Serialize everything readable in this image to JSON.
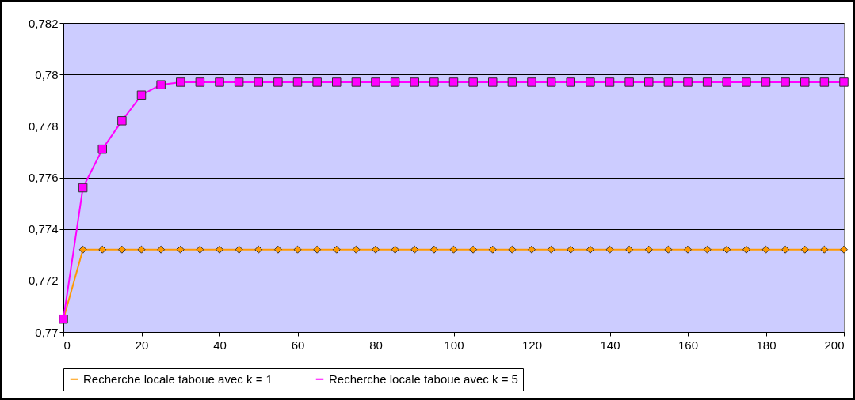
{
  "chart_data": {
    "type": "line",
    "x": [
      0,
      5,
      10,
      15,
      20,
      25,
      30,
      35,
      40,
      45,
      50,
      55,
      60,
      65,
      70,
      75,
      80,
      85,
      90,
      95,
      100,
      105,
      110,
      115,
      120,
      125,
      130,
      135,
      140,
      145,
      150,
      155,
      160,
      165,
      170,
      175,
      180,
      185,
      190,
      195,
      200
    ],
    "series": [
      {
        "name": "Recherche locale taboue avec k = 1",
        "color": "#ff9900",
        "marker": "diamond",
        "values": [
          0.7705,
          0.7732,
          0.7732,
          0.7732,
          0.7732,
          0.7732,
          0.7732,
          0.7732,
          0.7732,
          0.7732,
          0.7732,
          0.7732,
          0.7732,
          0.7732,
          0.7732,
          0.7732,
          0.7732,
          0.7732,
          0.7732,
          0.7732,
          0.7732,
          0.7732,
          0.7732,
          0.7732,
          0.7732,
          0.7732,
          0.7732,
          0.7732,
          0.7732,
          0.7732,
          0.7732,
          0.7732,
          0.7732,
          0.7732,
          0.7732,
          0.7732,
          0.7732,
          0.7732,
          0.7732,
          0.7732,
          0.7732
        ]
      },
      {
        "name": "Recherche locale taboue avec k = 5",
        "color": "#ff00ff",
        "marker": "square",
        "values": [
          0.7705,
          0.7756,
          0.7771,
          0.7782,
          0.7792,
          0.7796,
          0.7797,
          0.7797,
          0.7797,
          0.7797,
          0.7797,
          0.7797,
          0.7797,
          0.7797,
          0.7797,
          0.7797,
          0.7797,
          0.7797,
          0.7797,
          0.7797,
          0.7797,
          0.7797,
          0.7797,
          0.7797,
          0.7797,
          0.7797,
          0.7797,
          0.7797,
          0.7797,
          0.7797,
          0.7797,
          0.7797,
          0.7797,
          0.7797,
          0.7797,
          0.7797,
          0.7797,
          0.7797,
          0.7797,
          0.7797,
          0.7797
        ]
      }
    ],
    "xlim": [
      0,
      200
    ],
    "xticks": [
      0,
      20,
      40,
      60,
      80,
      100,
      120,
      140,
      160,
      180,
      200
    ],
    "ylim": [
      0.77,
      0.782
    ],
    "yticks": [
      {
        "value": 0.77,
        "label": "0,77"
      },
      {
        "value": 0.772,
        "label": "0,772"
      },
      {
        "value": 0.774,
        "label": "0,774"
      },
      {
        "value": 0.776,
        "label": "0,776"
      },
      {
        "value": 0.778,
        "label": "0,778"
      },
      {
        "value": 0.78,
        "label": "0,78"
      },
      {
        "value": 0.782,
        "label": "0,782"
      }
    ],
    "grid": "y",
    "legend": "bottom",
    "line_style": "solid"
  }
}
